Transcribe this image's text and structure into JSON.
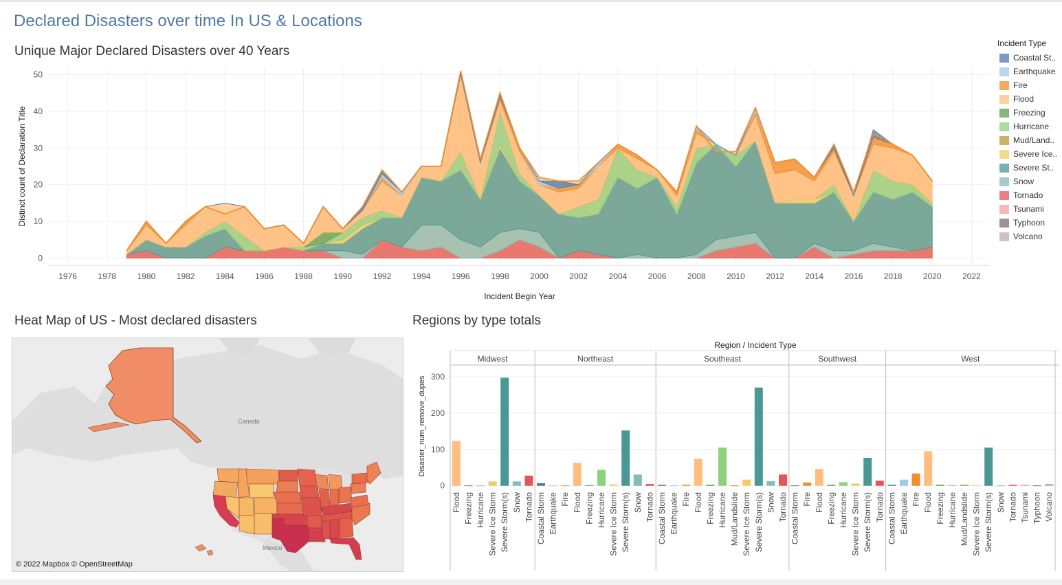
{
  "dashboard": {
    "title": "Declared Disasters over time In US & Locations"
  },
  "area_chart": {
    "title": "Unique Major Declared Disasters over 40 Years",
    "xlabel": "Incident Begin Year",
    "ylabel": "Distinct count of Declaration Title"
  },
  "legend": {
    "title": "Incident Type",
    "items": [
      {
        "label": "Coastal St..",
        "color": "#4e79a7"
      },
      {
        "label": "Earthquake",
        "color": "#a0cbe8"
      },
      {
        "label": "Fire",
        "color": "#f28e2b"
      },
      {
        "label": "Flood",
        "color": "#ffbe7d"
      },
      {
        "label": "Freezing",
        "color": "#59a14f"
      },
      {
        "label": "Hurricane",
        "color": "#8cd17d"
      },
      {
        "label": "Mud/Land..",
        "color": "#b6992d"
      },
      {
        "label": "Severe Ice..",
        "color": "#f1ce63"
      },
      {
        "label": "Severe St..",
        "color": "#499894"
      },
      {
        "label": "Snow",
        "color": "#86bcb6"
      },
      {
        "label": "Tornado",
        "color": "#e15759"
      },
      {
        "label": "Tsunami",
        "color": "#ff9d9a"
      },
      {
        "label": "Typhoon",
        "color": "#79706e"
      },
      {
        "label": "Volcano",
        "color": "#bab0ac"
      }
    ]
  },
  "map": {
    "title": "Heat Map of US - Most declared disasters",
    "credit": "© 2022 Mapbox © OpenStreetMap",
    "label_canada": "Canada",
    "label_mexico": "Mexico"
  },
  "bar_chart": {
    "title": "Regions by type totals",
    "header": "Region  /  Incident Type",
    "ylabel": "Disaster_num_remove_dupes"
  },
  "chart_data": [
    {
      "type": "area",
      "title": "Unique Major Declared Disasters over 40 Years",
      "xlabel": "Incident Begin Year",
      "ylabel": "Distinct count of Declaration Title",
      "xlim": [
        1975,
        2023
      ],
      "ylim": [
        -2,
        52
      ],
      "x_ticks": [
        1976,
        1978,
        1980,
        1982,
        1984,
        1986,
        1988,
        1990,
        1992,
        1994,
        1996,
        1998,
        2000,
        2002,
        2004,
        2006,
        2008,
        2010,
        2012,
        2014,
        2016,
        2018,
        2020,
        2022
      ],
      "y_ticks": [
        0,
        10,
        20,
        30,
        40,
        50
      ],
      "x": [
        1979,
        1980,
        1981,
        1982,
        1983,
        1984,
        1985,
        1986,
        1987,
        1988,
        1989,
        1990,
        1991,
        1992,
        1993,
        1994,
        1995,
        1996,
        1997,
        1998,
        1999,
        2000,
        2001,
        2002,
        2003,
        2004,
        2005,
        2006,
        2007,
        2008,
        2009,
        2010,
        2011,
        2012,
        2013,
        2014,
        2015,
        2016,
        2017,
        2018,
        2019,
        2020
      ],
      "total": [
        2,
        10,
        4,
        10,
        14,
        12,
        14,
        8,
        9,
        4,
        14,
        8,
        14,
        24,
        18,
        25,
        25,
        51,
        27,
        45,
        30,
        22,
        21,
        21,
        26,
        31,
        28,
        24,
        18,
        36,
        29,
        29,
        41,
        26,
        27,
        22,
        31,
        18,
        34,
        31,
        28,
        21
      ],
      "series": [
        {
          "name": "Tornado",
          "values": [
            1,
            2,
            0,
            0,
            0,
            3,
            2,
            2,
            3,
            2,
            2,
            0,
            0,
            5,
            3,
            2,
            3,
            0,
            0,
            2,
            5,
            3,
            0,
            2,
            1,
            0,
            0,
            0,
            0,
            0,
            2,
            3,
            4,
            0,
            0,
            3,
            0,
            1,
            2,
            2,
            2,
            3
          ]
        },
        {
          "name": "Snow",
          "values": [
            0,
            0,
            0,
            0,
            0,
            0,
            0,
            0,
            0,
            0,
            0,
            2,
            1,
            0,
            0,
            7,
            6,
            5,
            3,
            5,
            3,
            4,
            0,
            0,
            0,
            0,
            1,
            0,
            0,
            1,
            3,
            3,
            3,
            0,
            0,
            1,
            2,
            1,
            2,
            1,
            0,
            0
          ]
        },
        {
          "name": "Severe Storm(s)",
          "values": [
            0,
            3,
            3,
            3,
            6,
            5,
            0,
            0,
            0,
            0,
            2,
            2,
            7,
            6,
            8,
            13,
            12,
            19,
            13,
            23,
            13,
            10,
            12,
            9,
            11,
            22,
            18,
            22,
            12,
            25,
            26,
            19,
            25,
            15,
            15,
            11,
            16,
            8,
            14,
            13,
            16,
            11
          ]
        },
        {
          "name": "Severe Ice Storm",
          "values": [
            0,
            0,
            0,
            0,
            0,
            0,
            0,
            0,
            0,
            0,
            0,
            1,
            1,
            0,
            0,
            0,
            0,
            0,
            0,
            1,
            0,
            0,
            0,
            0,
            0,
            0,
            0,
            0,
            0,
            0,
            0,
            0,
            0,
            0,
            1,
            1,
            0,
            0,
            0,
            0,
            0,
            0
          ]
        },
        {
          "name": "Hurricane",
          "values": [
            0,
            0,
            0,
            0,
            1,
            2,
            4,
            0,
            0,
            1,
            0,
            2,
            2,
            2,
            0,
            0,
            0,
            5,
            0,
            9,
            2,
            0,
            0,
            3,
            4,
            8,
            5,
            0,
            2,
            4,
            0,
            3,
            0,
            0,
            0,
            0,
            2,
            0,
            6,
            5,
            2,
            1
          ]
        },
        {
          "name": "Freezing",
          "values": [
            0,
            0,
            0,
            0,
            0,
            0,
            0,
            0,
            0,
            0,
            3,
            0,
            0,
            0,
            0,
            0,
            0,
            0,
            0,
            0,
            0,
            0,
            0,
            0,
            0,
            0,
            0,
            0,
            0,
            0,
            0,
            0,
            0,
            0,
            0,
            0,
            0,
            0,
            0,
            0,
            0,
            0
          ]
        },
        {
          "name": "Flood",
          "values": [
            1,
            4,
            1,
            6,
            7,
            5,
            8,
            6,
            6,
            1,
            7,
            1,
            2,
            8,
            6,
            3,
            4,
            21,
            10,
            3,
            6,
            3,
            6,
            5,
            9,
            0,
            3,
            2,
            3,
            4,
            0,
            0,
            7,
            8,
            8,
            5,
            9,
            7,
            7,
            9,
            8,
            6
          ]
        },
        {
          "name": "Fire",
          "values": [
            0,
            1,
            0,
            1,
            0,
            0,
            0,
            0,
            0,
            0,
            0,
            0,
            0,
            1,
            0,
            0,
            0,
            0,
            0,
            1,
            1,
            0,
            1,
            1,
            0,
            1,
            1,
            0,
            1,
            1,
            0,
            0,
            1,
            3,
            3,
            1,
            1,
            0,
            2,
            1,
            0,
            0
          ]
        },
        {
          "name": "Earthquake",
          "values": [
            0,
            0,
            0,
            0,
            0,
            0,
            0,
            0,
            0,
            0,
            0,
            0,
            0,
            1,
            1,
            0,
            0,
            0,
            0,
            0,
            0,
            1,
            0,
            0,
            1,
            0,
            0,
            0,
            0,
            1,
            0,
            0,
            1,
            0,
            0,
            0,
            0,
            0,
            0,
            0,
            0,
            0
          ]
        },
        {
          "name": "Coastal Storm",
          "values": [
            0,
            0,
            0,
            0,
            0,
            0,
            0,
            0,
            0,
            0,
            0,
            0,
            1,
            1,
            0,
            0,
            0,
            1,
            0,
            1,
            0,
            0,
            2,
            0,
            0,
            0,
            0,
            0,
            0,
            0,
            0,
            0,
            0,
            0,
            0,
            0,
            1,
            0,
            2,
            0,
            0,
            0
          ]
        }
      ]
    },
    {
      "type": "bar",
      "title": "Regions by type totals",
      "ylabel": "Disaster_num_remove_dupes",
      "ylim": [
        -10,
        330
      ],
      "y_ticks": [
        0,
        100,
        200,
        300
      ],
      "regions": [
        {
          "name": "Midwest",
          "categories": [
            "Flood",
            "Freezing",
            "Hurricane",
            "Severe Ice Storm",
            "Severe Storm(s)",
            "Snow",
            "Tornado"
          ],
          "values": [
            123,
            1,
            1,
            12,
            297,
            12,
            28
          ]
        },
        {
          "name": "Northeast",
          "categories": [
            "Coastal Storm",
            "Earthquake",
            "Fire",
            "Flood",
            "Freezing",
            "Hurricane",
            "Severe Ice Storm",
            "Severe Storm(s)",
            "Snow",
            "Tornado"
          ],
          "values": [
            7,
            1,
            1,
            63,
            2,
            44,
            4,
            152,
            31,
            5
          ]
        },
        {
          "name": "Southeast",
          "categories": [
            "Coastal Storm",
            "Earthquake",
            "Fire",
            "Flood",
            "Freezing",
            "Hurricane",
            "Mud/Landslide",
            "Severe Ice Storm",
            "Severe Storm(s)",
            "Snow",
            "Tornado"
          ],
          "values": [
            3,
            1,
            3,
            74,
            3,
            105,
            1,
            17,
            270,
            13,
            31
          ]
        },
        {
          "name": "Southwest",
          "categories": [
            "Coastal Storm",
            "Fire",
            "Flood",
            "Freezing",
            "Hurricane",
            "Severe Ice Storm",
            "Severe Storm(s)",
            "Tornado"
          ],
          "values": [
            1,
            9,
            46,
            3,
            10,
            6,
            77,
            14
          ]
        },
        {
          "name": "West",
          "categories": [
            "Coastal Storm",
            "Earthquake",
            "Fire",
            "Flood",
            "Freezing",
            "Hurricane",
            "Mud/Landslide",
            "Severe Ice Storm",
            "Severe Storm(s)",
            "Snow",
            "Tornado",
            "Tsunami",
            "Typhoon",
            "Volcano"
          ],
          "values": [
            3,
            17,
            34,
            95,
            3,
            2,
            3,
            2,
            105,
            1,
            3,
            3,
            1,
            5
          ]
        }
      ]
    }
  ]
}
